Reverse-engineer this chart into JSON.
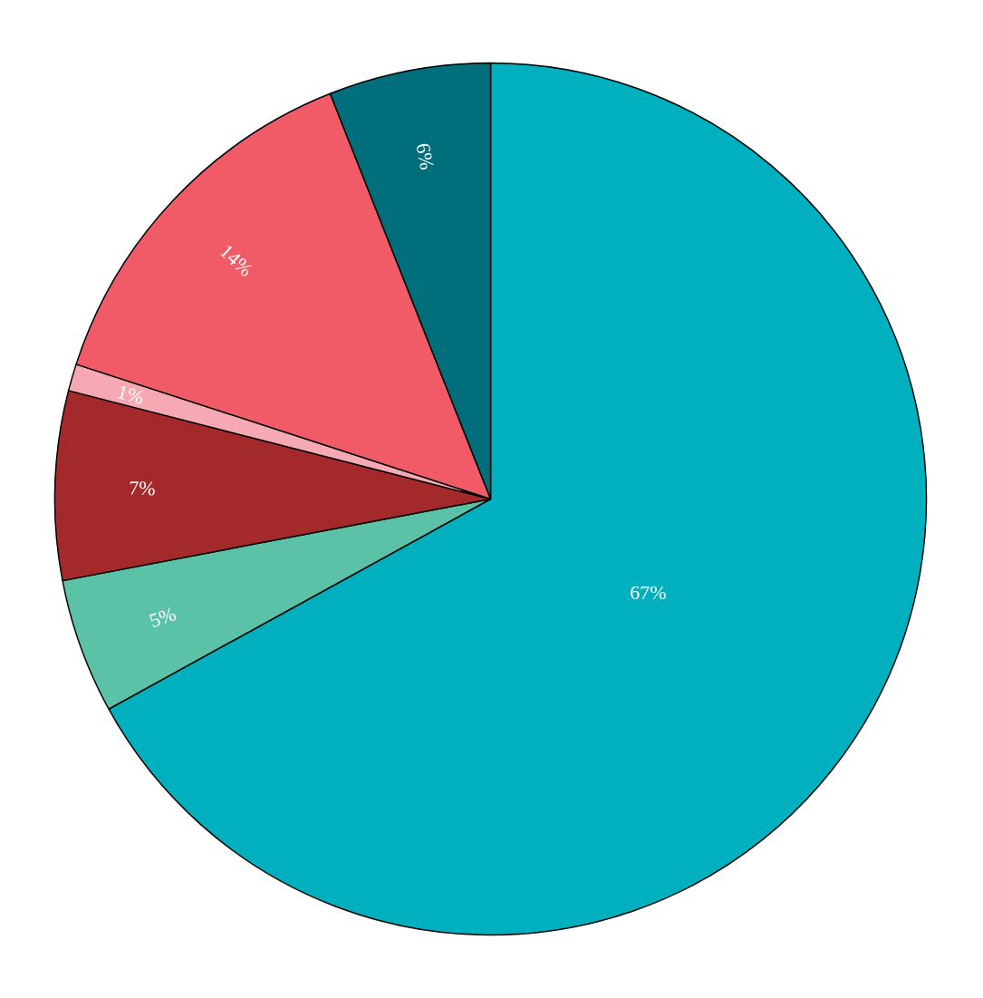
{
  "chart_data": {
    "type": "pie",
    "categories": [
      null,
      null,
      null,
      null,
      null,
      null
    ],
    "values": [
      67,
      5,
      7,
      1,
      14,
      6
    ],
    "colors": [
      "#00b0be",
      "#5bc2a8",
      "#a3292b",
      "#f6a8b3",
      "#f05b67",
      "#006f7b"
    ],
    "value_labels": [
      "67%",
      "5%",
      "7%",
      "1%",
      "14%",
      "6%"
    ]
  }
}
